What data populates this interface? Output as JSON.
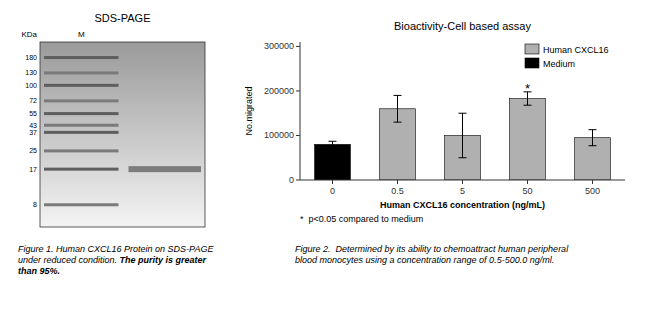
{
  "chart_data": [
    {
      "type": "gel",
      "title": "SDS-PAGE",
      "ylabel": "KDa",
      "categories": [
        "M",
        null
      ],
      "values": [
        null,
        17
      ],
      "log": "y",
      "ylim": [
        5,
        250
      ],
      "yticks": [
        180,
        130,
        100,
        72,
        55,
        43,
        37,
        25,
        17,
        8
      ],
      "annotations": [
        "Figure 1. Human CXCL16 Protein on SDS-PAGE",
        "under reduced condition. ",
        "The purity is greater",
        "than 95%."
      ]
    },
    {
      "type": "bar",
      "title": "Bioactivity-Cell based assay",
      "xlabel": "Human CXCL16 concentration (ng/mL)",
      "ylabel": "No.migrated",
      "categories": [
        "0",
        "0.5",
        "5",
        "50",
        "500"
      ],
      "series": [
        {
          "name": "Human CXCL16",
          "color": "#b0b0b0",
          "values": [
            null,
            160000,
            100000,
            183000,
            95000
          ],
          "errors": [
            null,
            30000,
            50000,
            15000,
            18000
          ]
        },
        {
          "name": "Medium",
          "color": "#000000",
          "values": [
            80000,
            null,
            null,
            null,
            null
          ],
          "errors": [
            7000,
            null,
            null,
            null,
            null
          ]
        }
      ],
      "ylim": [
        0,
        310000
      ],
      "yticks": [
        0,
        100000,
        200000,
        300000
      ],
      "grid": false,
      "legend": "upper right",
      "annotations": [
        {
          "text": "*",
          "x": "50"
        },
        "  *  p<0.05 compared to medium",
        "Figure 2.  Determined by its ability to chemoattract human peripheral",
        "blood monocytes using a concentration range of 0.5-500.0 ng/ml."
      ]
    }
  ]
}
